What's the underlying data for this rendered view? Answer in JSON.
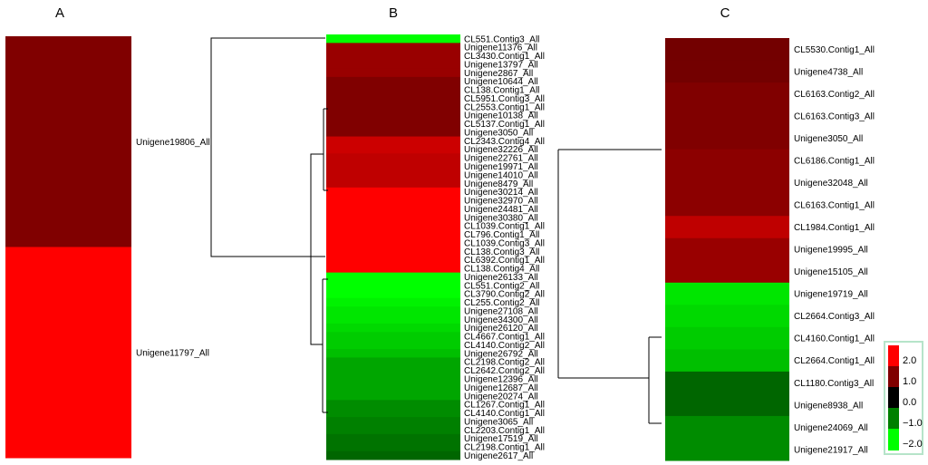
{
  "chart_data": [
    {
      "type": "heatmap",
      "panel_label": "A",
      "rows": [
        "Unigene19806_All",
        "Unigene11797_All"
      ],
      "values": [
        1.0,
        2.0
      ]
    },
    {
      "type": "heatmap",
      "panel_label": "B",
      "rows": [
        "CL551.Contig3_All",
        "Unigene11376_All",
        "CL3430.Contig1_All",
        "Unigene13797_All",
        "Unigene2867_All",
        "Unigene10644_All",
        "CL138.Contig1_All",
        "CL5951.Contig3_All",
        "CL2553.Contig1_All",
        "Unigene10138_All",
        "CL5137.Contig1_All",
        "Unigene3050_All",
        "CL2343.Contig4_All",
        "Unigene32226_All",
        "Unigene22761_All",
        "Unigene19971_All",
        "Unigene14010_All",
        "Unigene8479_All",
        "Unigene30214_All",
        "Unigene32970_All",
        "Unigene24481_All",
        "Unigene30380_All",
        "CL1039.Contig1_All",
        "CL796.Contig1_All",
        "CL1039.Contig3_All",
        "CL138.Contig3_All",
        "CL6392.Contig1_All",
        "CL138.Contig4_All",
        "Unigene26133_All",
        "CL551.Contig2_All",
        "CL3790.Contig2_All",
        "CL255.Contig2_All",
        "Unigene27108_All",
        "Unigene34300_All",
        "Unigene26120_All",
        "CL4667.Contig1_All",
        "CL4140.Contig2_All",
        "Unigene26792_All",
        "CL2198.Contig2_All",
        "CL2642.Contig2_All",
        "Unigene12396_All",
        "Unigene12687_All",
        "Unigene20274_All",
        "CL1267.Contig1_All",
        "CL4140.Contig1_All",
        "Unigene3065_All",
        "CL2203.Contig1_All",
        "Unigene17519_All",
        "CL2198.Contig1_All",
        "Unigene2617_All"
      ],
      "values": [
        -2.0,
        1.2,
        1.2,
        1.2,
        1.2,
        1.0,
        1.0,
        1.0,
        1.0,
        1.0,
        1.0,
        1.0,
        1.6,
        1.6,
        1.5,
        1.5,
        1.5,
        1.5,
        2.0,
        2.0,
        2.0,
        2.0,
        2.0,
        2.0,
        2.0,
        2.0,
        2.0,
        2.0,
        -2.0,
        -2.0,
        -2.0,
        -1.9,
        -1.8,
        -1.8,
        -1.7,
        -1.6,
        -1.6,
        -1.5,
        -1.3,
        -1.3,
        -1.3,
        -1.3,
        -1.3,
        -1.1,
        -1.1,
        -1.0,
        -1.0,
        -0.9,
        -0.9,
        -0.8
      ]
    },
    {
      "type": "heatmap",
      "panel_label": "C",
      "rows": [
        "CL5530.Contig1_All",
        "Unigene4738_All",
        "CL6163.Contig2_All",
        "CL6163.Contig3_All",
        "Unigene3050_All",
        "CL6186.Contig1_All",
        "Unigene32048_All",
        "CL6163.Contig1_All",
        "CL1984.Contig1_All",
        "Unigene19995_All",
        "Unigene15105_All",
        "Unigene19719_All",
        "CL2664.Contig3_All",
        "CL4160.Contig1_All",
        "CL2664.Contig1_All",
        "CL1180.Contig3_All",
        "Unigene8938_All",
        "Unigene24069_All",
        "Unigene21917_All"
      ],
      "values": [
        0.9,
        0.9,
        1.0,
        1.0,
        1.0,
        1.1,
        1.1,
        1.1,
        1.5,
        1.2,
        1.2,
        -1.8,
        -1.7,
        -1.6,
        -1.5,
        -0.8,
        -0.8,
        -1.1,
        -1.1
      ]
    }
  ],
  "legend": {
    "ticks": [
      "2.0",
      "1.0",
      "0.0",
      "−1.0",
      "−2.0"
    ],
    "range": [
      -2.0,
      2.0
    ],
    "colors": {
      "high": "#ff0000",
      "mid": "#000000",
      "low": "#00ff00",
      "border": "#b6e4c9"
    }
  }
}
